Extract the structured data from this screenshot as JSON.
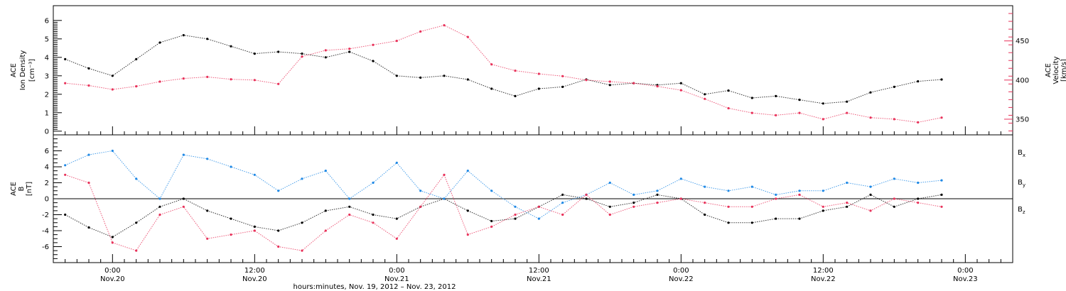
{
  "chart_data": [
    {
      "type": "scatter",
      "panel": "top",
      "left_axis_label": [
        "ACE",
        "Ion Density",
        "[cm⁻³]"
      ],
      "right_axis_label": [
        "ACE",
        "Velocity",
        "[km/s]"
      ],
      "left_ylim": [
        -0.2,
        6.8
      ],
      "left_ticks": [
        0,
        1,
        2,
        3,
        4,
        5,
        6
      ],
      "right_ylim": [
        330,
        495
      ],
      "right_ticks": [
        350,
        400,
        450
      ],
      "series": [
        {
          "name": "",
          "axis": "left",
          "color": "#000000",
          "x": [
            -4,
            -2,
            0,
            2,
            4,
            6,
            8,
            10,
            12,
            14,
            16,
            18,
            20,
            22,
            24,
            26,
            28,
            30,
            32,
            34,
            36,
            38,
            40,
            42,
            44,
            46,
            48,
            50,
            52,
            54,
            56,
            58,
            60,
            62,
            64,
            66,
            68,
            70
          ],
          "values": [
            3.9,
            3.4,
            3.0,
            3.9,
            4.8,
            5.2,
            5.0,
            4.6,
            4.2,
            4.3,
            4.2,
            4.0,
            4.3,
            3.8,
            3.0,
            2.9,
            3.0,
            2.8,
            2.3,
            1.9,
            2.3,
            2.4,
            2.8,
            2.5,
            2.6,
            2.5,
            2.6,
            2.0,
            2.2,
            1.8,
            1.9,
            1.7,
            1.5,
            1.6,
            2.1,
            2.4,
            2.7,
            2.8
          ]
        },
        {
          "name": "",
          "axis": "right",
          "color": "#e8325a",
          "x": [
            -4,
            -2,
            0,
            2,
            4,
            6,
            8,
            10,
            12,
            14,
            16,
            18,
            20,
            22,
            24,
            26,
            28,
            30,
            32,
            34,
            36,
            38,
            40,
            42,
            44,
            46,
            48,
            50,
            52,
            54,
            56,
            58,
            60,
            62,
            64,
            66,
            68,
            70
          ],
          "values": [
            396,
            393,
            388,
            392,
            398,
            402,
            404,
            401,
            400,
            395,
            430,
            438,
            440,
            445,
            450,
            462,
            470,
            455,
            420,
            412,
            408,
            405,
            400,
            398,
            396,
            392,
            387,
            376,
            364,
            358,
            355,
            358,
            350,
            358,
            352,
            350,
            346,
            352
          ]
        }
      ]
    },
    {
      "type": "scatter",
      "panel": "bottom",
      "left_axis_label": [
        "ACE",
        "B",
        "[nT]"
      ],
      "ylim": [
        -8,
        8
      ],
      "ticks": [
        -6,
        -4,
        -2,
        0,
        2,
        4,
        6
      ],
      "series": [
        {
          "name": "Bx",
          "label_main": "B",
          "label_sub": "x",
          "color": "#000000",
          "x": [
            -4,
            -2,
            0,
            2,
            4,
            6,
            8,
            10,
            12,
            14,
            16,
            18,
            20,
            22,
            24,
            26,
            28,
            30,
            32,
            34,
            36,
            38,
            40,
            42,
            44,
            46,
            48,
            50,
            52,
            54,
            56,
            58,
            60,
            62,
            64,
            66,
            68,
            70
          ],
          "values": [
            -2.0,
            -3.6,
            -4.8,
            -3.0,
            -1.0,
            0.0,
            -1.5,
            -2.5,
            -3.5,
            -4.0,
            -3.0,
            -1.5,
            -1.0,
            -2.0,
            -2.5,
            -1.0,
            0.0,
            -1.5,
            -2.8,
            -2.5,
            -1.0,
            0.5,
            0.0,
            -1.0,
            -0.5,
            0.5,
            0.0,
            -2.0,
            -3.0,
            -3.0,
            -2.5,
            -2.5,
            -1.5,
            -1.0,
            0.5,
            -1.0,
            0.0,
            0.5
          ]
        },
        {
          "name": "By",
          "label_main": "B",
          "label_sub": "y",
          "color": "#1e88e5",
          "x": [
            -4,
            -2,
            0,
            2,
            4,
            6,
            8,
            10,
            12,
            14,
            16,
            18,
            20,
            22,
            24,
            26,
            28,
            30,
            32,
            34,
            36,
            38,
            40,
            42,
            44,
            46,
            48,
            50,
            52,
            54,
            56,
            58,
            60,
            62,
            64,
            66,
            68,
            70
          ],
          "values": [
            4.2,
            5.5,
            6.0,
            2.5,
            0.0,
            5.5,
            5.0,
            4.0,
            3.0,
            1.0,
            2.5,
            3.5,
            0.0,
            2.0,
            4.5,
            1.0,
            0.0,
            3.5,
            1.0,
            -1.0,
            -2.5,
            -0.5,
            0.5,
            2.0,
            0.5,
            1.0,
            2.5,
            1.5,
            1.0,
            1.5,
            0.5,
            1.0,
            1.0,
            2.0,
            1.5,
            2.5,
            2.0,
            2.3
          ]
        },
        {
          "name": "Bz",
          "label_main": "B",
          "label_sub": "z",
          "color": "#e8325a",
          "x": [
            -4,
            -2,
            0,
            2,
            4,
            6,
            8,
            10,
            12,
            14,
            16,
            18,
            20,
            22,
            24,
            26,
            28,
            30,
            32,
            34,
            36,
            38,
            40,
            42,
            44,
            46,
            48,
            50,
            52,
            54,
            56,
            58,
            60,
            62,
            64,
            66,
            68,
            70
          ],
          "values": [
            3.0,
            2.0,
            -5.5,
            -6.5,
            -2.0,
            -1.0,
            -5.0,
            -4.5,
            -4.0,
            -6.0,
            -6.5,
            -4.0,
            -2.0,
            -3.0,
            -5.0,
            -1.0,
            3.0,
            -4.5,
            -3.5,
            -2.0,
            -1.0,
            -2.0,
            0.5,
            -2.0,
            -1.0,
            -0.5,
            0.0,
            -0.5,
            -1.0,
            -1.0,
            0.0,
            0.5,
            -1.0,
            -0.5,
            -1.5,
            0.0,
            -0.5,
            -1.0
          ]
        }
      ]
    }
  ],
  "x_axis": {
    "xlim": [
      -5,
      76
    ],
    "tick_hours": [
      0,
      12,
      24,
      36,
      48,
      60,
      72
    ],
    "tick_times": [
      "0:00",
      "12:00",
      "0:00",
      "12:00",
      "0:00",
      "12:00",
      "0:00"
    ],
    "tick_dates": [
      "Nov.20",
      "Nov.20",
      "Nov.21",
      "Nov.21",
      "Nov.22",
      "Nov.22",
      "Nov.23"
    ],
    "xlabel": "hours:minutes, Nov. 19, 2012 – Nov. 23, 2012"
  },
  "colors": {
    "black": "#000000",
    "red": "#e8325a",
    "blue": "#1e88e5"
  }
}
